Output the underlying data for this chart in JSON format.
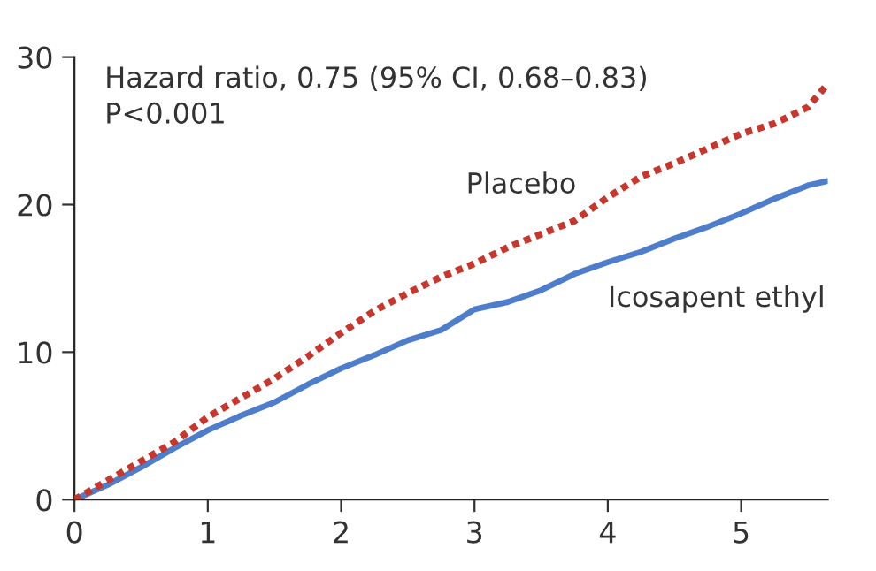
{
  "chart_data": {
    "type": "line",
    "x": [
      0,
      0.25,
      0.5,
      0.75,
      1,
      1.25,
      1.5,
      1.75,
      2,
      2.25,
      2.5,
      2.75,
      3,
      3.25,
      3.5,
      3.75,
      4,
      4.25,
      4.5,
      4.75,
      5,
      5.25,
      5.5,
      5.65
    ],
    "series": [
      {
        "name": "Placebo",
        "color": "#c8372d",
        "line_style": "dotted",
        "values": [
          0,
          1.3,
          2.6,
          3.9,
          5.6,
          6.9,
          8.2,
          9.7,
          11.3,
          12.8,
          14.0,
          15.1,
          16.0,
          17.1,
          18.0,
          18.9,
          20.5,
          21.9,
          22.8,
          23.8,
          24.8,
          25.5,
          26.6,
          28.2
        ]
      },
      {
        "name": "Icosapent ethyl",
        "color": "#4e7ecb",
        "line_style": "solid",
        "values": [
          0,
          1.0,
          2.2,
          3.5,
          4.7,
          5.7,
          6.6,
          7.8,
          8.9,
          9.8,
          10.8,
          11.5,
          12.9,
          13.4,
          14.2,
          15.3,
          16.1,
          16.8,
          17.7,
          18.5,
          19.4,
          20.4,
          21.3,
          21.6
        ]
      }
    ],
    "xlim": [
      0,
      5.65
    ],
    "ylim": [
      0,
      30
    ],
    "xticks": [
      0,
      1,
      2,
      3,
      4,
      5
    ],
    "yticks": [
      0,
      10,
      20,
      30
    ],
    "grid": false,
    "legend": false,
    "annotations": [
      "Hazard ratio, 0.75 (95% CI, 0.68–0.83)\nP<0.001"
    ]
  }
}
